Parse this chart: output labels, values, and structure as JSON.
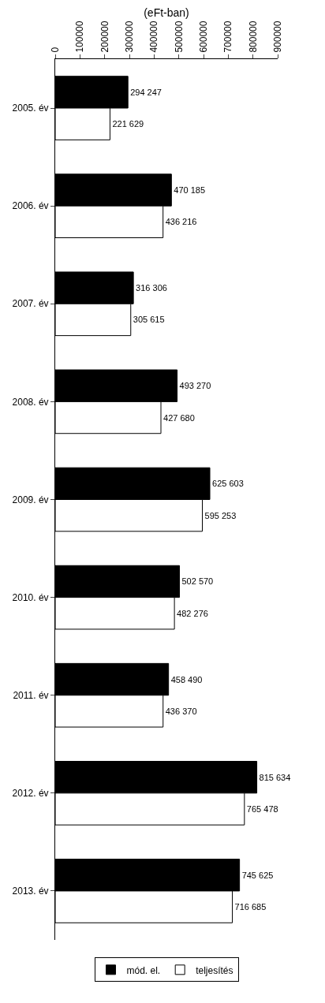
{
  "chart_data": {
    "type": "bar",
    "orientation": "horizontal",
    "xlabel": "(eFt-ban)",
    "categories": [
      "2005. év",
      "2006. év",
      "2007. év",
      "2008. év",
      "2009. év",
      "2010. év",
      "2011. év",
      "2012. év",
      "2013. év"
    ],
    "series": [
      {
        "name": "mód. el.",
        "color": "#000000",
        "values": [
          294247,
          470185,
          316306,
          493270,
          625603,
          502570,
          458490,
          815634,
          745625
        ],
        "value_labels": [
          "294 247",
          "470 185",
          "316 306",
          "493 270",
          "625 603",
          "502 570",
          "458 490",
          "815 634",
          "745 625"
        ]
      },
      {
        "name": "teljesítés",
        "color": "#ffffff",
        "values": [
          221629,
          436216,
          305615,
          427680,
          595253,
          482276,
          436370,
          765478,
          716685
        ],
        "value_labels": [
          "221 629",
          "436 216",
          "305 615",
          "427 680",
          "595 253",
          "482 276",
          "436 370",
          "765 478",
          "716 685"
        ]
      }
    ],
    "xlim": [
      0,
      900000
    ],
    "xticks": [
      0,
      100000,
      200000,
      300000,
      400000,
      500000,
      600000,
      700000,
      800000,
      900000
    ],
    "grid": false,
    "legend": "bottom"
  }
}
